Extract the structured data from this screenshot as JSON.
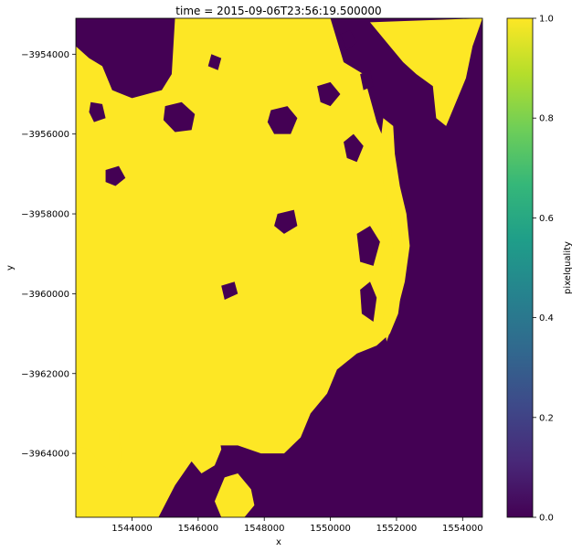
{
  "chart_data": [
    {
      "type": "heatmap",
      "title": "time = 2015-09-06T23:56:19.500000",
      "xlabel": "x",
      "ylabel": "y",
      "xlim": [
        1542300,
        1554600
      ],
      "ylim": [
        -3965600,
        -3953100
      ],
      "x_ticks": [
        {
          "value": 1544000,
          "label": "1544000"
        },
        {
          "value": 1546000,
          "label": "1546000"
        },
        {
          "value": 1548000,
          "label": "1548000"
        },
        {
          "value": 1550000,
          "label": "1550000"
        },
        {
          "value": 1552000,
          "label": "1552000"
        },
        {
          "value": 1554000,
          "label": "1554000"
        }
      ],
      "y_ticks": [
        {
          "value": -3954000,
          "label": "−3954000"
        },
        {
          "value": -3956000,
          "label": "−3956000"
        },
        {
          "value": -3958000,
          "label": "−3958000"
        },
        {
          "value": -3960000,
          "label": "−3960000"
        },
        {
          "value": -3962000,
          "label": "−3962000"
        },
        {
          "value": -3964000,
          "label": "−3964000"
        }
      ],
      "value_range": [
        0.0,
        1.0
      ],
      "colors": {
        "value_0": "#440154",
        "value_1": "#fde725"
      },
      "regions_value_1": [
        {
          "name": "land-mass",
          "outline": [
            [
              1542300,
              -3953800
            ],
            [
              1542700,
              -3954100
            ],
            [
              1543100,
              -3954300
            ],
            [
              1543400,
              -3954900
            ],
            [
              1544000,
              -3955100
            ],
            [
              1544900,
              -3954900
            ],
            [
              1545200,
              -3954500
            ],
            [
              1545300,
              -3953100
            ],
            [
              1550000,
              -3953100
            ],
            [
              1550400,
              -3954200
            ],
            [
              1551000,
              -3954500
            ],
            [
              1551400,
              -3955700
            ],
            [
              1551800,
              -3956500
            ],
            [
              1552000,
              -3957200
            ],
            [
              1552200,
              -3958000
            ],
            [
              1552300,
              -3958800
            ],
            [
              1552200,
              -3959600
            ],
            [
              1552050,
              -3960500
            ],
            [
              1551800,
              -3961000
            ],
            [
              1551400,
              -3961300
            ],
            [
              1550800,
              -3961500
            ],
            [
              1550200,
              -3961900
            ],
            [
              1549900,
              -3962500
            ],
            [
              1549400,
              -3963000
            ],
            [
              1549100,
              -3963600
            ],
            [
              1548600,
              -3964000
            ],
            [
              1547900,
              -3964000
            ],
            [
              1547200,
              -3963800
            ],
            [
              1546500,
              -3963800
            ],
            [
              1545800,
              -3964200
            ],
            [
              1545300,
              -3964800
            ],
            [
              1544800,
              -3965600
            ],
            [
              1542300,
              -3965600
            ]
          ]
        },
        {
          "name": "north-coast-strip",
          "outline": [
            [
              1551200,
              -3953200
            ],
            [
              1554600,
              -3953100
            ],
            [
              1554300,
              -3953800
            ],
            [
              1554100,
              -3954600
            ],
            [
              1553800,
              -3955200
            ],
            [
              1553500,
              -3955800
            ],
            [
              1553200,
              -3955600
            ],
            [
              1553100,
              -3954800
            ],
            [
              1552600,
              -3954500
            ],
            [
              1552200,
              -3954200
            ],
            [
              1551800,
              -3953800
            ]
          ]
        },
        {
          "name": "east-coast-strip",
          "outline": [
            [
              1551600,
              -3955600
            ],
            [
              1551900,
              -3955800
            ],
            [
              1551950,
              -3956500
            ],
            [
              1552100,
              -3957300
            ],
            [
              1552300,
              -3958000
            ],
            [
              1552400,
              -3958800
            ],
            [
              1552250,
              -3959700
            ],
            [
              1552000,
              -3960500
            ],
            [
              1551700,
              -3961200
            ],
            [
              1551600,
              -3960600
            ],
            [
              1551800,
              -3959800
            ],
            [
              1551900,
              -3958900
            ],
            [
              1551800,
              -3958000
            ],
            [
              1551600,
              -3957200
            ],
            [
              1551500,
              -3956300
            ]
          ]
        },
        {
          "name": "south-west-patch",
          "outline": [
            [
              1542300,
              -3963200
            ],
            [
              1542700,
              -3962900
            ],
            [
              1543100,
              -3963200
            ],
            [
              1543600,
              -3963500
            ],
            [
              1543700,
              -3964100
            ],
            [
              1543500,
              -3964500
            ],
            [
              1543100,
              -3964300
            ],
            [
              1542700,
              -3963900
            ],
            [
              1542300,
              -3963800
            ]
          ]
        },
        {
          "name": "south-central-patch",
          "outline": [
            [
              1545700,
              -3963100
            ],
            [
              1546200,
              -3963000
            ],
            [
              1546600,
              -3963400
            ],
            [
              1546700,
              -3963900
            ],
            [
              1546500,
              -3964300
            ],
            [
              1546100,
              -3964500
            ],
            [
              1545700,
              -3964100
            ],
            [
              1545500,
              -3963600
            ]
          ]
        },
        {
          "name": "south-edge-patch",
          "outline": [
            [
              1546800,
              -3964600
            ],
            [
              1547200,
              -3964500
            ],
            [
              1547600,
              -3964900
            ],
            [
              1547700,
              -3965300
            ],
            [
              1547400,
              -3965600
            ],
            [
              1546700,
              -3965600
            ],
            [
              1546500,
              -3965200
            ]
          ]
        }
      ],
      "regions_value_0": [
        {
          "name": "hole-nw-1",
          "outline": [
            [
              1542750,
              -3955200
            ],
            [
              1543100,
              -3955250
            ],
            [
              1543200,
              -3955600
            ],
            [
              1542850,
              -3955700
            ],
            [
              1542700,
              -3955450
            ]
          ]
        },
        {
          "name": "hole-nw-2",
          "outline": [
            [
              1543200,
              -3956900
            ],
            [
              1543600,
              -3956800
            ],
            [
              1543800,
              -3957100
            ],
            [
              1543500,
              -3957300
            ],
            [
              1543200,
              -3957200
            ]
          ]
        },
        {
          "name": "hole-n-lake",
          "outline": [
            [
              1545000,
              -3955300
            ],
            [
              1545500,
              -3955200
            ],
            [
              1545900,
              -3955500
            ],
            [
              1545800,
              -3955900
            ],
            [
              1545300,
              -3955950
            ],
            [
              1544950,
              -3955650
            ]
          ]
        },
        {
          "name": "hole-n-2",
          "outline": [
            [
              1546400,
              -3954000
            ],
            [
              1546700,
              -3954100
            ],
            [
              1546600,
              -3954400
            ],
            [
              1546300,
              -3954300
            ]
          ]
        },
        {
          "name": "hole-nc-1",
          "outline": [
            [
              1548200,
              -3955400
            ],
            [
              1548700,
              -3955300
            ],
            [
              1549000,
              -3955600
            ],
            [
              1548800,
              -3956000
            ],
            [
              1548300,
              -3956000
            ],
            [
              1548100,
              -3955700
            ]
          ]
        },
        {
          "name": "hole-nc-2",
          "outline": [
            [
              1549600,
              -3954800
            ],
            [
              1550000,
              -3954700
            ],
            [
              1550300,
              -3955000
            ],
            [
              1550000,
              -3955300
            ],
            [
              1549700,
              -3955200
            ]
          ]
        },
        {
          "name": "hole-c-1",
          "outline": [
            [
              1548400,
              -3958000
            ],
            [
              1548900,
              -3957900
            ],
            [
              1549000,
              -3958300
            ],
            [
              1548600,
              -3958500
            ],
            [
              1548300,
              -3958300
            ]
          ]
        },
        {
          "name": "hole-c-2",
          "outline": [
            [
              1546700,
              -3959800
            ],
            [
              1547100,
              -3959700
            ],
            [
              1547200,
              -3960000
            ],
            [
              1546800,
              -3960150
            ]
          ]
        },
        {
          "name": "hole-e-1",
          "outline": [
            [
              1550800,
              -3958500
            ],
            [
              1551200,
              -3958300
            ],
            [
              1551500,
              -3958700
            ],
            [
              1551300,
              -3959300
            ],
            [
              1550900,
              -3959200
            ]
          ]
        },
        {
          "name": "hole-e-2",
          "outline": [
            [
              1550900,
              -3959900
            ],
            [
              1551200,
              -3959700
            ],
            [
              1551400,
              -3960100
            ],
            [
              1551300,
              -3960700
            ],
            [
              1550950,
              -3960500
            ]
          ]
        },
        {
          "name": "hole-e-3",
          "outline": [
            [
              1550400,
              -3956200
            ],
            [
              1550700,
              -3956000
            ],
            [
              1551000,
              -3956300
            ],
            [
              1550800,
              -3956700
            ],
            [
              1550500,
              -3956600
            ]
          ]
        },
        {
          "name": "hole-ne-1",
          "outline": [
            [
              1550300,
              -3953500
            ],
            [
              1550600,
              -3953400
            ],
            [
              1550800,
              -3953700
            ],
            [
              1550500,
              -3953900
            ]
          ]
        },
        {
          "name": "hole-ne-2",
          "outline": [
            [
              1550900,
              -3954500
            ],
            [
              1551200,
              -3954400
            ],
            [
              1551300,
              -3954800
            ],
            [
              1551000,
              -3954900
            ]
          ]
        }
      ],
      "colorbar": {
        "label": "pixelquality",
        "range": [
          0.0,
          1.0
        ],
        "ticks": [
          {
            "value": 0.0,
            "label": "0.0"
          },
          {
            "value": 0.2,
            "label": "0.2"
          },
          {
            "value": 0.4,
            "label": "0.4"
          },
          {
            "value": 0.6,
            "label": "0.6"
          },
          {
            "value": 0.8,
            "label": "0.8"
          },
          {
            "value": 1.0,
            "label": "1.0"
          }
        ],
        "colormap_stops": [
          "#440154",
          "#482878",
          "#3e4989",
          "#31688e",
          "#26828e",
          "#1f9e89",
          "#35b779",
          "#6ece58",
          "#b5de2b",
          "#fde725"
        ]
      }
    }
  ]
}
